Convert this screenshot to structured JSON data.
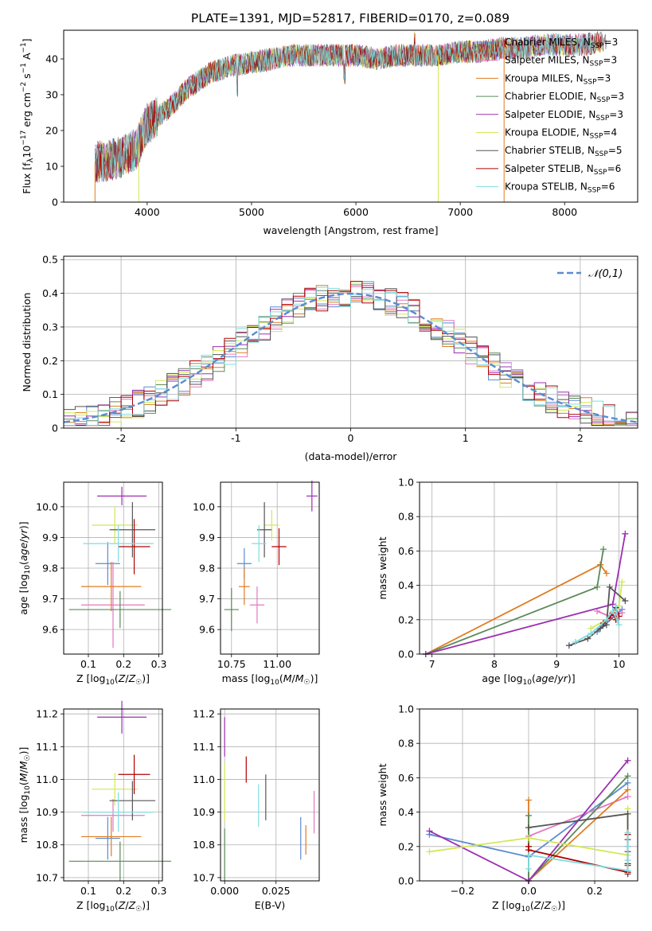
{
  "title": "PLATE=1391, MJD=52817, FIBERID=0170, z=0.089",
  "colors": {
    "chabrier_miles": "#5b8bd0",
    "salpeter_miles": "#e377c2",
    "kroupa_miles": "#e07b1f",
    "chabrier_elodie": "#5a8a5a",
    "salpeter_elodie": "#9b30b0",
    "kroupa_elodie": "#d4e855",
    "chabrier_stelib": "#555555",
    "salpeter_stelib": "#b00000",
    "kroupa_stelib": "#7fdde0",
    "normal": "#5b8bd0"
  },
  "chart_data": [
    {
      "type": "line",
      "panel": "spectrum",
      "xlabel": "wavelength [Angstrom, rest frame]",
      "ylabel": "Flux [f_λ10^-17 erg cm^-2 s^-1 A^-1]",
      "xlim": [
        3200,
        8700
      ],
      "ylim": [
        0,
        48
      ],
      "xticks": [
        4000,
        5000,
        6000,
        7000,
        8000
      ],
      "yticks": [
        0,
        10,
        20,
        30,
        40
      ],
      "legend_position": "top-right",
      "legend": [
        "Chabrier MILES, N_SSP=3",
        "Salpeter MILES, N_SSP=3",
        "Kroupa MILES, N_SSP=3",
        "Chabrier ELODIE, N_SSP=3",
        "Salpeter ELODIE, N_SSP=3",
        "Kroupa ELODIE, N_SSP=4",
        "Chabrier STELIB, N_SSP=5",
        "Salpeter STELIB, N_SSP=6",
        "Kroupa STELIB, N_SSP=6"
      ],
      "spectrum_envelope": {
        "x": [
          3500,
          3700,
          3900,
          4000,
          4200,
          4400,
          4600,
          4800,
          5000,
          5200,
          5400,
          5600,
          5800,
          6000,
          6200,
          6400,
          6600,
          6800,
          7000,
          7200,
          7400,
          7600,
          7800,
          8000,
          8200,
          8400
        ],
        "y": [
          11,
          12,
          15,
          22,
          26,
          32,
          36,
          38,
          39,
          40,
          41,
          41,
          41,
          41,
          40,
          41,
          41,
          41,
          42,
          42,
          43,
          43,
          44,
          44,
          44,
          45
        ]
      }
    },
    {
      "type": "bar",
      "panel": "residual-histogram",
      "xlabel": "(data-model)/error",
      "ylabel": "Normed distribution",
      "xlim": [
        -2.5,
        2.5
      ],
      "ylim": [
        0,
        0.51
      ],
      "xticks": [
        -2,
        -1,
        0,
        1,
        2
      ],
      "yticks": [
        0.0,
        0.1,
        0.2,
        0.3,
        0.4,
        0.5
      ],
      "grid": true,
      "legend_position": "top-right",
      "legend": [
        "𝒩(0,1)"
      ]
    },
    {
      "type": "scatter",
      "panel": "age-vs-Z",
      "xlabel": "Z [log10(Z/Z☉)]",
      "ylabel": "age [log10(age/yr)]",
      "xlim": [
        0.03,
        0.31
      ],
      "ylim": [
        9.52,
        10.08
      ],
      "xticks": [
        "0.1",
        "0.2",
        "0.3"
      ],
      "yticks": [
        "9.6",
        "9.7",
        "9.8",
        "9.9",
        "10.0"
      ],
      "grid": true,
      "points": [
        {
          "model": "chabrier_miles",
          "x": 0.155,
          "y": 9.815,
          "xerr": 0.035,
          "yerr": 0.07
        },
        {
          "model": "salpeter_miles",
          "x": 0.17,
          "y": 9.68,
          "xerr": 0.09,
          "yerr": 0.14
        },
        {
          "model": "kroupa_miles",
          "x": 0.165,
          "y": 9.74,
          "xerr": 0.085,
          "yerr": 0.08
        },
        {
          "model": "chabrier_elodie",
          "x": 0.19,
          "y": 9.665,
          "xerr": 0.145,
          "yerr": 0.06
        },
        {
          "model": "salpeter_elodie",
          "x": 0.195,
          "y": 10.035,
          "xerr": 0.07,
          "yerr": 0.03
        },
        {
          "model": "kroupa_elodie",
          "x": 0.175,
          "y": 9.94,
          "xerr": 0.065,
          "yerr": 0.06
        },
        {
          "model": "chabrier_stelib",
          "x": 0.225,
          "y": 9.925,
          "xerr": 0.065,
          "yerr": 0.09
        },
        {
          "model": "salpeter_stelib",
          "x": 0.23,
          "y": 9.87,
          "xerr": 0.045,
          "yerr": 0.09
        },
        {
          "model": "kroupa_stelib",
          "x": 0.185,
          "y": 9.88,
          "xerr": 0.1,
          "yerr": 0.06
        }
      ]
    },
    {
      "type": "scatter",
      "panel": "age-vs-mass",
      "xlabel": "mass [log10(M/M☉)]",
      "ylabel": "",
      "xlim": [
        10.69,
        11.23
      ],
      "ylim": [
        9.52,
        10.08
      ],
      "xticks": [
        "10.75",
        "11.00"
      ],
      "yticks": [
        "9.6",
        "9.7",
        "9.8",
        "9.9",
        "10.0"
      ],
      "grid": true,
      "points": [
        {
          "model": "chabrier_miles",
          "x": 10.82,
          "y": 9.815,
          "xerr": 0.04,
          "yerr": 0.05
        },
        {
          "model": "salpeter_miles",
          "x": 10.89,
          "y": 9.68,
          "xerr": 0.04,
          "yerr": 0.06
        },
        {
          "model": "kroupa_miles",
          "x": 10.82,
          "y": 9.74,
          "xerr": 0.03,
          "yerr": 0.06
        },
        {
          "model": "chabrier_elodie",
          "x": 10.75,
          "y": 9.665,
          "xerr": 0.04,
          "yerr": 0.07
        },
        {
          "model": "salpeter_elodie",
          "x": 11.19,
          "y": 10.035,
          "xerr": 0.03,
          "yerr": 0.05
        },
        {
          "model": "kroupa_elodie",
          "x": 10.97,
          "y": 9.94,
          "xerr": 0.04,
          "yerr": 0.05
        },
        {
          "model": "chabrier_stelib",
          "x": 10.93,
          "y": 9.925,
          "xerr": 0.04,
          "yerr": 0.09
        },
        {
          "model": "salpeter_stelib",
          "x": 11.01,
          "y": 9.87,
          "xerr": 0.04,
          "yerr": 0.06
        },
        {
          "model": "kroupa_stelib",
          "x": 10.9,
          "y": 9.88,
          "xerr": 0.04,
          "yerr": 0.06
        }
      ]
    },
    {
      "type": "line",
      "panel": "mass-weight-vs-age",
      "xlabel": "age [log10(age/yr)]",
      "ylabel": "mass weight",
      "xlim": [
        6.8,
        10.3
      ],
      "ylim": [
        0,
        1
      ],
      "xticks": [
        7,
        8,
        9,
        10
      ],
      "yticks": [
        "0.0",
        "0.2",
        "0.4",
        "0.6",
        "0.8",
        "1.0"
      ],
      "grid": true,
      "series": [
        {
          "model": "chabrier_miles",
          "x": [
            9.95,
            9.65,
            10.05
          ],
          "y": [
            0.27,
            0.13,
            0.26
          ]
        },
        {
          "model": "salpeter_miles",
          "x": [
            9.65,
            9.85,
            10.05
          ],
          "y": [
            0.25,
            0.22,
            0.24
          ]
        },
        {
          "model": "kroupa_miles",
          "x": [
            6.9,
            9.7,
            9.8
          ],
          "y": [
            0.0,
            0.52,
            0.47
          ]
        },
        {
          "model": "chabrier_elodie",
          "x": [
            6.9,
            9.65,
            9.75
          ],
          "y": [
            0.0,
            0.39,
            0.61
          ]
        },
        {
          "model": "salpeter_elodie",
          "x": [
            6.9,
            9.9,
            10.1
          ],
          "y": [
            0.0,
            0.29,
            0.7
          ]
        },
        {
          "model": "kroupa_elodie",
          "x": [
            9.55,
            9.8,
            10.0,
            10.05
          ],
          "y": [
            0.15,
            0.2,
            0.28,
            0.42
          ]
        },
        {
          "model": "chabrier_stelib",
          "x": [
            9.2,
            9.5,
            9.7,
            9.8,
            9.85,
            10.1
          ],
          "y": [
            0.05,
            0.09,
            0.15,
            0.17,
            0.39,
            0.31
          ]
        },
        {
          "model": "salpeter_stelib",
          "x": [
            9.75,
            9.85,
            9.9,
            9.95,
            10.0,
            9.95
          ],
          "y": [
            0.18,
            0.21,
            0.24,
            0.2,
            0.22,
            0.27
          ]
        },
        {
          "model": "kroupa_stelib",
          "x": [
            9.3,
            9.55,
            9.8,
            9.9,
            10.0,
            9.95
          ],
          "y": [
            0.07,
            0.12,
            0.2,
            0.25,
            0.17,
            0.28
          ]
        }
      ]
    },
    {
      "type": "scatter",
      "panel": "mass-vs-Z",
      "xlabel": "Z [log10(Z/Z☉)]",
      "ylabel": "mass [log10(M/M☉)]",
      "xlim": [
        0.03,
        0.31
      ],
      "ylim": [
        10.69,
        11.215
      ],
      "xticks": [
        "0.1",
        "0.2",
        "0.3"
      ],
      "yticks": [
        "10.7",
        "10.8",
        "10.9",
        "11.0",
        "11.1",
        "11.2"
      ],
      "grid": true,
      "points": [
        {
          "model": "chabrier_miles",
          "x": 0.155,
          "y": 10.82,
          "xerr": 0.035,
          "yerr": 0.065
        },
        {
          "model": "salpeter_miles",
          "x": 0.17,
          "y": 10.89,
          "xerr": 0.09,
          "yerr": 0.05
        },
        {
          "model": "kroupa_miles",
          "x": 0.165,
          "y": 10.825,
          "xerr": 0.085,
          "yerr": 0.06
        },
        {
          "model": "chabrier_elodie",
          "x": 0.19,
          "y": 10.75,
          "xerr": 0.145,
          "yerr": 0.06
        },
        {
          "model": "salpeter_elodie",
          "x": 0.195,
          "y": 11.19,
          "xerr": 0.07,
          "yerr": 0.05
        },
        {
          "model": "kroupa_elodie",
          "x": 0.175,
          "y": 10.97,
          "xerr": 0.065,
          "yerr": 0.05
        },
        {
          "model": "chabrier_stelib",
          "x": 0.225,
          "y": 10.935,
          "xerr": 0.065,
          "yerr": 0.06
        },
        {
          "model": "salpeter_stelib",
          "x": 0.23,
          "y": 11.015,
          "xerr": 0.045,
          "yerr": 0.06
        },
        {
          "model": "kroupa_stelib",
          "x": 0.185,
          "y": 10.9,
          "xerr": 0.1,
          "yerr": 0.06
        }
      ]
    },
    {
      "type": "scatter",
      "panel": "mass-vs-EBV",
      "xlabel": "E(B-V)",
      "ylabel": "",
      "xlim": [
        -0.002,
        0.046
      ],
      "ylim": [
        10.69,
        11.215
      ],
      "xticks": [
        "0.000",
        "0.025"
      ],
      "yticks": [
        "10.7",
        "10.8",
        "10.9",
        "11.0",
        "11.1",
        "11.2"
      ],
      "grid": true,
      "points": [
        {
          "model": "chabrier_miles",
          "x": 0.037,
          "y": 10.82,
          "yerr": 0.065
        },
        {
          "model": "salpeter_miles",
          "x": 0.0435,
          "y": 10.9,
          "yerr": 0.065
        },
        {
          "model": "kroupa_miles",
          "x": 0.0395,
          "y": 10.815,
          "yerr": 0.045
        },
        {
          "model": "chabrier_elodie",
          "x": 0.0,
          "y": 10.77,
          "yerr": 0.08
        },
        {
          "model": "salpeter_elodie",
          "x": 0.0,
          "y": 11.13,
          "yerr": 0.06
        },
        {
          "model": "kroupa_elodie",
          "x": 0.0,
          "y": 10.96,
          "yerr": 0.09
        },
        {
          "model": "chabrier_stelib",
          "x": 0.02,
          "y": 10.945,
          "yerr": 0.07
        },
        {
          "model": "salpeter_stelib",
          "x": 0.0105,
          "y": 11.03,
          "yerr": 0.04
        },
        {
          "model": "kroupa_stelib",
          "x": 0.0165,
          "y": 10.92,
          "yerr": 0.065
        }
      ]
    },
    {
      "type": "line",
      "panel": "mass-weight-vs-Z",
      "xlabel": "Z [log10(Z/Z☉)]",
      "ylabel": "mass weight",
      "xlim": [
        -0.33,
        0.33
      ],
      "ylim": [
        0,
        1
      ],
      "xticks": [
        "−0.2",
        "0.0",
        "0.2"
      ],
      "yticks": [
        "0.0",
        "0.2",
        "0.4",
        "0.6",
        "0.8",
        "1.0"
      ],
      "grid": true,
      "series": [
        {
          "model": "chabrier_miles",
          "x": [
            -0.3,
            0.0,
            0.3
          ],
          "y": [
            0.27,
            0.14,
            0.57
          ]
        },
        {
          "model": "salpeter_miles",
          "x": [
            0.0,
            0.3
          ],
          "y": [
            0.26,
            0.49
          ]
        },
        {
          "model": "kroupa_miles",
          "x": [
            0.0,
            0.0,
            0.3
          ],
          "y": [
            0.47,
            0.0,
            0.53
          ]
        },
        {
          "model": "chabrier_elodie",
          "x": [
            0.0,
            0.0,
            0.3
          ],
          "y": [
            0.38,
            0.0,
            0.61
          ]
        },
        {
          "model": "salpeter_elodie",
          "x": [
            -0.3,
            0.0,
            0.3
          ],
          "y": [
            0.29,
            0.0,
            0.7
          ]
        },
        {
          "model": "kroupa_elodie",
          "x": [
            -0.3,
            0.0,
            0.3,
            0.3
          ],
          "y": [
            0.17,
            0.25,
            0.15,
            0.42
          ]
        },
        {
          "model": "chabrier_stelib",
          "x": [
            0.0,
            0.3,
            0.3,
            0.3,
            0.3,
            0.3
          ],
          "y": [
            0.31,
            0.39,
            0.04,
            0.09,
            0.17,
            0.24
          ]
        },
        {
          "model": "salpeter_stelib",
          "x": [
            0.0,
            0.0,
            0.3,
            0.3,
            0.3,
            0.3
          ],
          "y": [
            0.2,
            0.18,
            0.05,
            0.1,
            0.2,
            0.27
          ]
        },
        {
          "model": "kroupa_stelib",
          "x": [
            0.0,
            0.0,
            0.3,
            0.3,
            0.3,
            0.3
          ],
          "y": [
            0.07,
            0.15,
            0.06,
            0.12,
            0.2,
            0.28
          ]
        }
      ]
    }
  ]
}
